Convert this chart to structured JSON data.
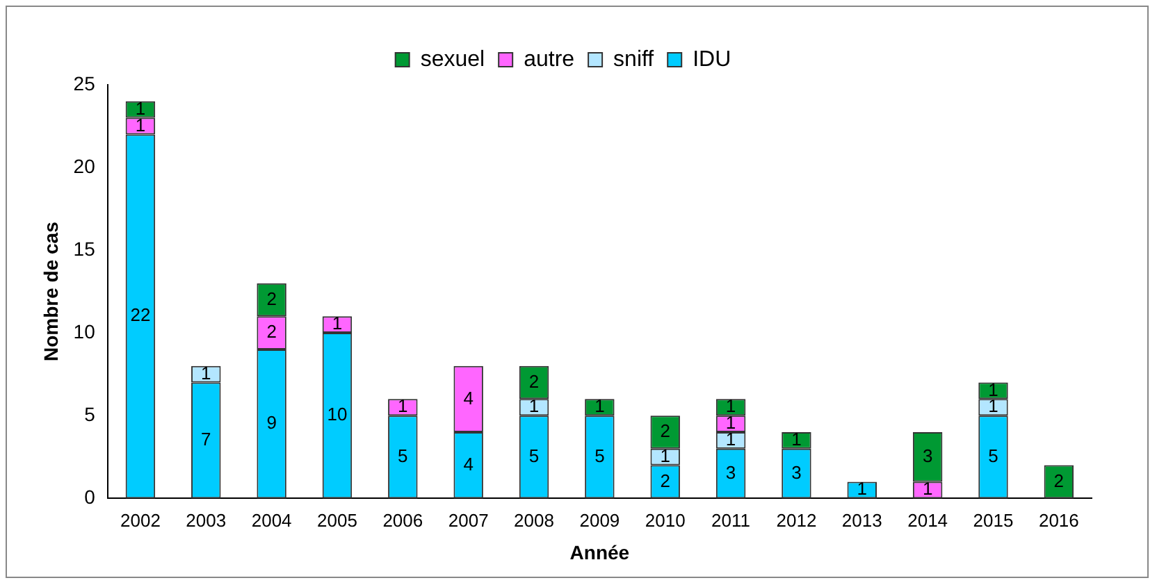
{
  "chart_data": {
    "type": "bar",
    "stacked": true,
    "xlabel": "Année",
    "ylabel": "Nombre de cas",
    "categories": [
      "2002",
      "2003",
      "2004",
      "2005",
      "2006",
      "2007",
      "2008",
      "2009",
      "2010",
      "2011",
      "2012",
      "2013",
      "2014",
      "2015",
      "2016"
    ],
    "series": [
      {
        "name": "IDU",
        "color": "#00ccff",
        "values": [
          22,
          7,
          9,
          10,
          5,
          4,
          5,
          5,
          2,
          3,
          3,
          1,
          null,
          5,
          null
        ]
      },
      {
        "name": "sniff",
        "color": "#b3e6ff",
        "values": [
          null,
          1,
          null,
          null,
          null,
          null,
          1,
          null,
          1,
          1,
          null,
          null,
          null,
          1,
          null
        ]
      },
      {
        "name": "autre",
        "color": "#ff66ff",
        "values": [
          1,
          null,
          2,
          1,
          1,
          4,
          null,
          null,
          null,
          1,
          null,
          null,
          1,
          null,
          null
        ]
      },
      {
        "name": "sexuel",
        "color": "#009933",
        "values": [
          1,
          null,
          2,
          null,
          null,
          null,
          2,
          1,
          2,
          1,
          1,
          null,
          3,
          1,
          2
        ]
      }
    ],
    "ylim": [
      0,
      25
    ],
    "yticks": [
      0,
      5,
      10,
      15,
      20,
      25
    ],
    "grid": false,
    "legend": "top",
    "data_labels": true
  }
}
